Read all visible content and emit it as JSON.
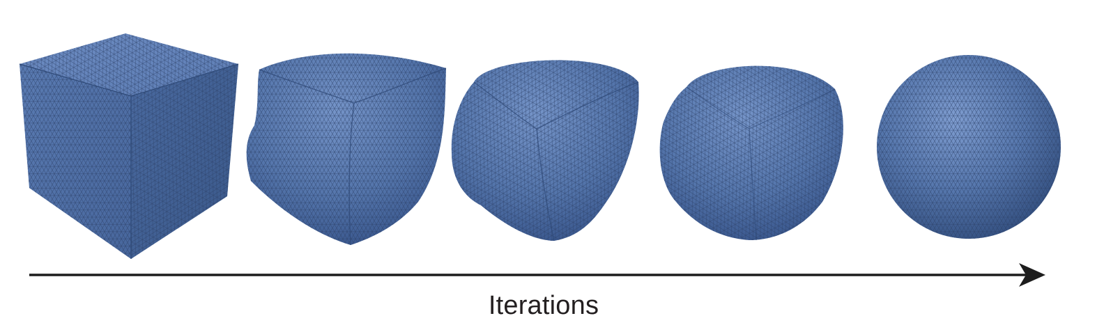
{
  "colors": {
    "mesh_fill_light": "#6f8fc4",
    "mesh_fill_mid": "#5275aa",
    "mesh_fill_dark": "#3f5f93",
    "mesh_line": "#2c4066",
    "arrow": "#1d1d1d",
    "background": "#ffffff"
  },
  "stages": [
    {
      "name": "cube",
      "shape": "cube"
    },
    {
      "name": "deformed-1",
      "shape": "blob"
    },
    {
      "name": "deformed-2",
      "shape": "blob"
    },
    {
      "name": "deformed-3",
      "shape": "blob"
    },
    {
      "name": "sphere",
      "shape": "sphere"
    }
  ],
  "axis": {
    "label": "Iterations",
    "direction": "left-to-right"
  }
}
